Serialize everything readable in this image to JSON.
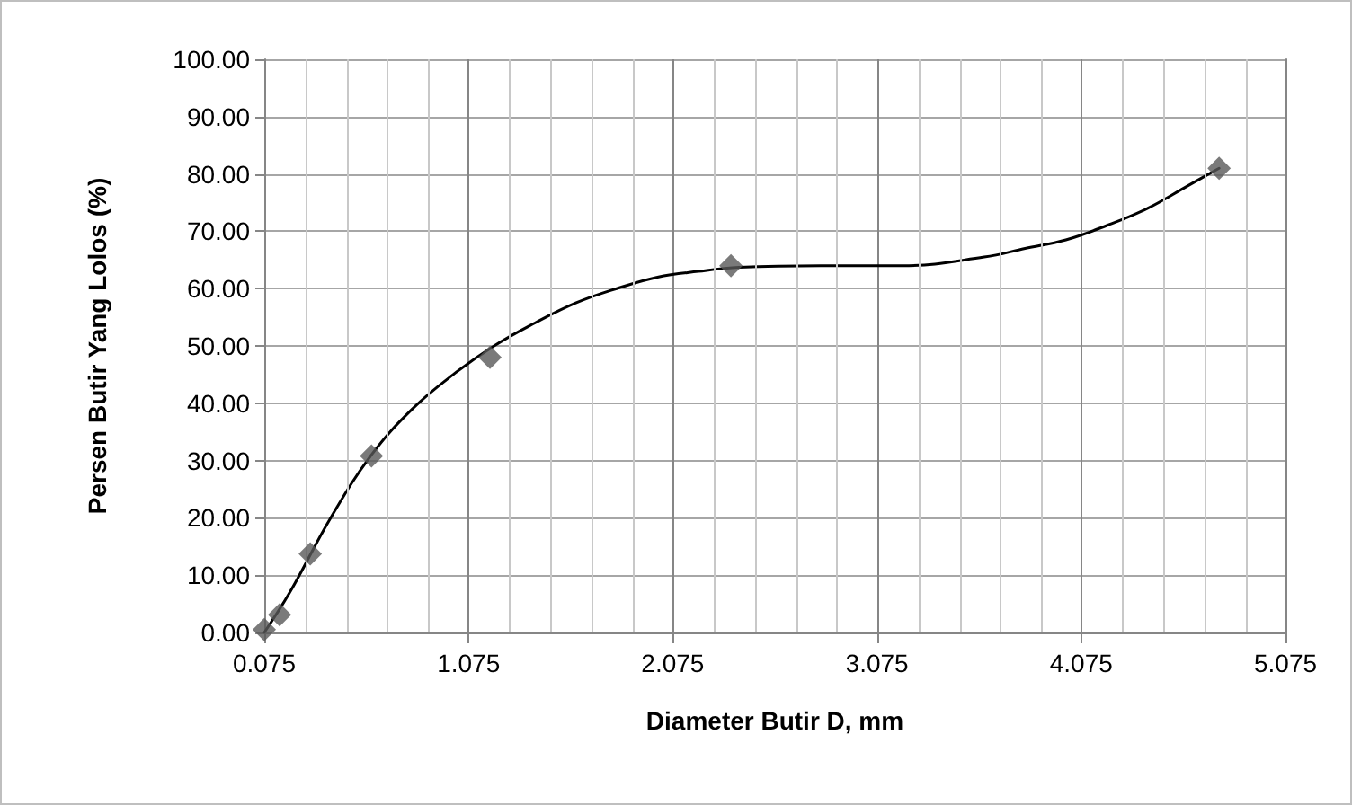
{
  "chart_data": {
    "type": "scatter",
    "xlabel": "Diameter Butir D, mm",
    "ylabel": "Persen Butir Yang Lolos (%)",
    "xlim": [
      0.075,
      5.075
    ],
    "xticks": [
      0.075,
      1.075,
      2.075,
      3.075,
      4.075,
      5.075
    ],
    "ylim": [
      0,
      100
    ],
    "yticks": [
      {
        "value": 0,
        "label": "0.00"
      },
      {
        "value": 10,
        "label": "10.00"
      },
      {
        "value": 20,
        "label": "20.00"
      },
      {
        "value": 30,
        "label": "30.00"
      },
      {
        "value": 40,
        "label": "40.00"
      },
      {
        "value": 50,
        "label": "50.00"
      },
      {
        "value": 60,
        "label": "60.00"
      },
      {
        "value": 70,
        "label": "70.00"
      },
      {
        "value": 80,
        "label": "80.00"
      },
      {
        "value": 90,
        "label": "90.00"
      },
      {
        "value": 100,
        "label": "100.00"
      }
    ],
    "grid": true,
    "series": [
      {
        "marker": "diamond",
        "color": "#595959",
        "x": [
          0.075,
          0.15,
          0.3,
          0.6,
          1.18,
          2.36,
          4.75
        ],
        "values": [
          0.5,
          3.1,
          13.7,
          30.8,
          48,
          64,
          81
        ]
      },
      {
        "type": "line",
        "marker": "none",
        "line_style": "solid",
        "color": "#000000",
        "x": [
          0.075,
          0.2,
          0.4,
          0.6,
          0.8,
          1.0,
          1.2,
          1.4,
          1.6,
          1.8,
          2.0,
          2.2,
          2.4,
          2.8,
          3.2,
          3.6,
          3.8,
          4.0,
          4.2,
          4.4,
          4.6,
          4.75
        ],
        "values": [
          0,
          7,
          20,
          31,
          39,
          45,
          50,
          54,
          57.5,
          60,
          62,
          63,
          63.7,
          64,
          64,
          65.5,
          67,
          68.5,
          71,
          74,
          78,
          81
        ]
      }
    ]
  }
}
